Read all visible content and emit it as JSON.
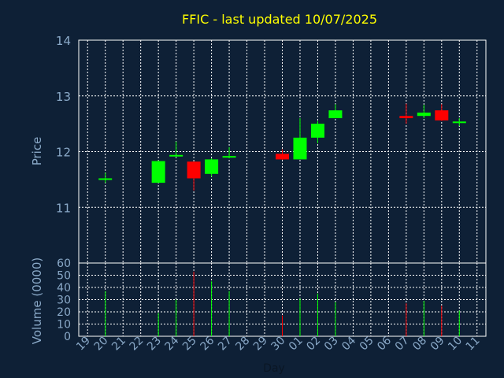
{
  "chart_data": {
    "type": "candlestick",
    "title": "FFIC - last updated 10/07/2025",
    "xlabel": "Day",
    "ylabel_price": "Price",
    "ylabel_volume": "Volume (0000)",
    "price_ylim": [
      10.0,
      14.0
    ],
    "price_ticks": [
      11,
      12,
      13,
      14
    ],
    "volume_ylim": [
      0,
      60
    ],
    "volume_ticks": [
      0,
      10,
      20,
      30,
      40,
      50,
      60
    ],
    "x_labels": [
      "19",
      "20",
      "21",
      "22",
      "23",
      "24",
      "25",
      "26",
      "27",
      "28",
      "29",
      "30",
      "01",
      "02",
      "03",
      "04",
      "05",
      "06",
      "07",
      "08",
      "09",
      "10",
      "11"
    ],
    "grid": true,
    "colors": {
      "up": "#00ff00",
      "down": "#ff0000",
      "background": "#0e2036",
      "axis_text": "#8aa9c8",
      "title": "#ffff00",
      "grid": "#ffffff"
    },
    "candles": [
      {
        "day": "20",
        "open": 11.52,
        "high": 11.62,
        "low": 11.44,
        "close": 11.52,
        "volume": 37
      },
      {
        "day": "23",
        "open": 11.44,
        "high": 11.84,
        "low": 11.44,
        "close": 11.83,
        "volume": 19
      },
      {
        "day": "24",
        "open": 11.92,
        "high": 12.18,
        "low": 11.9,
        "close": 11.94,
        "volume": 30
      },
      {
        "day": "25",
        "open": 11.82,
        "high": 11.82,
        "low": 11.3,
        "close": 11.52,
        "volume": 53
      },
      {
        "day": "26",
        "open": 11.6,
        "high": 11.88,
        "low": 11.55,
        "close": 11.86,
        "volume": 45
      },
      {
        "day": "27",
        "open": 11.9,
        "high": 12.08,
        "low": 11.88,
        "close": 11.92,
        "volume": 37
      },
      {
        "day": "30",
        "open": 11.96,
        "high": 12.04,
        "low": 11.85,
        "close": 11.86,
        "volume": 17
      },
      {
        "day": "01",
        "open": 11.86,
        "high": 12.6,
        "low": 11.86,
        "close": 12.25,
        "volume": 31
      },
      {
        "day": "02",
        "open": 12.25,
        "high": 12.55,
        "low": 12.15,
        "close": 12.5,
        "volume": 35
      },
      {
        "day": "03",
        "open": 12.6,
        "high": 12.85,
        "low": 12.6,
        "close": 12.74,
        "volume": 28
      },
      {
        "day": "07",
        "open": 12.64,
        "high": 12.86,
        "low": 12.5,
        "close": 12.6,
        "volume": 27
      },
      {
        "day": "08",
        "open": 12.64,
        "high": 12.84,
        "low": 12.6,
        "close": 12.7,
        "volume": 29
      },
      {
        "day": "09",
        "open": 12.74,
        "high": 12.85,
        "low": 12.55,
        "close": 12.56,
        "volume": 25
      },
      {
        "day": "10",
        "open": 12.52,
        "high": 12.6,
        "low": 12.46,
        "close": 12.54,
        "volume": 21
      }
    ]
  }
}
